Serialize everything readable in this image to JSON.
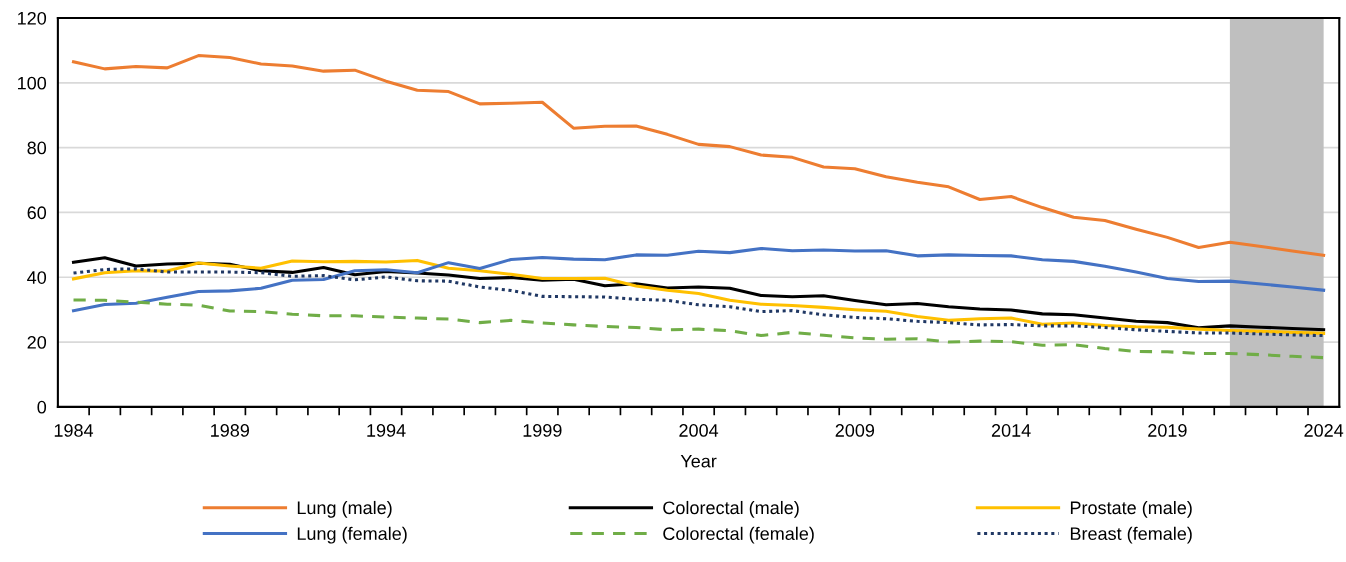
{
  "chart_data": {
    "type": "line",
    "xlabel": "Year",
    "x": [
      1984,
      1985,
      1986,
      1987,
      1988,
      1989,
      1990,
      1991,
      1992,
      1993,
      1994,
      1995,
      1996,
      1997,
      1998,
      1999,
      2000,
      2001,
      2002,
      2003,
      2004,
      2005,
      2006,
      2007,
      2008,
      2009,
      2010,
      2011,
      2012,
      2013,
      2014,
      2015,
      2016,
      2017,
      2018,
      2019,
      2020,
      2021,
      2022,
      2023,
      2024
    ],
    "series": [
      {
        "name": "Lung (male)",
        "color": "#ed7d31",
        "line_style": "solid",
        "values": [
          106.5,
          104.3,
          105,
          104.6,
          108.4,
          107.8,
          105.8,
          105.2,
          103.6,
          103.9,
          100.5,
          97.7,
          97.3,
          93.5,
          93.7,
          94,
          86,
          86.6,
          86.7,
          84.1,
          81,
          80.3,
          77.7,
          77,
          74,
          73.5,
          71,
          69.3,
          67.9,
          64,
          64.9,
          61.5,
          58.5,
          57.5,
          54.8,
          52.3,
          49.2,
          50.8,
          49.5,
          48.1,
          46.8
        ]
      },
      {
        "name": "Colorectal (male)",
        "color": "#000000",
        "line_style": "solid",
        "values": [
          44.6,
          46,
          43.5,
          44.1,
          44.3,
          44,
          42,
          41.5,
          43,
          40.8,
          41.8,
          41.3,
          40.7,
          39.6,
          39.9,
          39.1,
          39.4,
          37.4,
          38,
          36.7,
          37,
          36.6,
          34.4,
          34,
          34.3,
          32.8,
          31.5,
          31.9,
          30.9,
          30.2,
          29.9,
          28.7,
          28.4,
          27.4,
          26.4,
          26,
          24.4,
          25,
          24.6,
          24.2,
          23.8
        ]
      },
      {
        "name": "Prostate (male)",
        "color": "#ffc000",
        "line_style": "solid",
        "values": [
          39.5,
          41.4,
          42,
          41.9,
          44.4,
          43.5,
          42.8,
          45,
          44.8,
          44.9,
          44.7,
          45.2,
          42.8,
          42,
          40.9,
          39.6,
          39.6,
          39.7,
          37.3,
          36,
          35,
          32.9,
          31.7,
          31.3,
          30.7,
          30,
          29.5,
          27.9,
          26.7,
          27.2,
          27.4,
          25.5,
          25.9,
          25.1,
          24.7,
          24.6,
          24,
          23.6,
          23.3,
          23,
          22.7
        ]
      },
      {
        "name": "Lung (female)",
        "color": "#4472c4",
        "line_style": "solid",
        "values": [
          29.7,
          31.6,
          32,
          33.8,
          35.6,
          35.8,
          36.6,
          39.1,
          39.3,
          42,
          42.3,
          41.4,
          44.5,
          42.7,
          45.5,
          46.1,
          45.6,
          45.4,
          46.9,
          46.8,
          48,
          47.6,
          48.9,
          48.2,
          48.4,
          48.1,
          48.2,
          46.6,
          46.9,
          46.7,
          46.6,
          45.4,
          44.9,
          43.4,
          41.6,
          39.6,
          38.7,
          38.8,
          37.9,
          37,
          36
        ]
      },
      {
        "name": "Colorectal (female)",
        "color": "#70ad47",
        "line_style": "dashed",
        "values": [
          33,
          32.9,
          32.3,
          31.7,
          31.4,
          29.6,
          29.4,
          28.6,
          28.1,
          28.1,
          27.7,
          27.4,
          27.1,
          26,
          26.7,
          25.9,
          25.3,
          24.8,
          24.5,
          23.8,
          24,
          23.5,
          22,
          23,
          22.1,
          21.3,
          20.9,
          21,
          20,
          20.3,
          20.1,
          19,
          19.2,
          18,
          17.1,
          17,
          16.5,
          16.5,
          16.1,
          15.6,
          15.2
        ]
      },
      {
        "name": "Breast (female)",
        "color": "#203864",
        "line_style": "dotted",
        "values": [
          41.3,
          42.4,
          42.6,
          41.6,
          41.6,
          41.6,
          41.4,
          40.3,
          40.5,
          39.2,
          40.1,
          38.9,
          38.8,
          37,
          35.9,
          34.1,
          34,
          33.9,
          33.2,
          32.9,
          31.5,
          30.9,
          29.4,
          29.7,
          28.4,
          27.6,
          27.2,
          26.4,
          26,
          25.3,
          25.4,
          25,
          25,
          24.5,
          23.8,
          23.3,
          22.8,
          22.8,
          22.5,
          22.2,
          22
        ]
      }
    ],
    "bands": [
      {
        "axis": "x",
        "from": 2021,
        "to": 2024,
        "color": "#bfbfbf"
      }
    ],
    "xlim": [
      1983.5,
      2024.5
    ],
    "xticks": [
      1984,
      {
        "value": 1984.5,
        "label": null
      },
      {
        "value": 1985.5,
        "label": null
      },
      {
        "value": 1986.5,
        "label": null
      },
      {
        "value": 1987.5,
        "label": null
      },
      {
        "value": 1988.5,
        "label": null
      },
      1989,
      {
        "value": 1989.5,
        "label": null
      },
      {
        "value": 1990.5,
        "label": null
      },
      {
        "value": 1991.5,
        "label": null
      },
      {
        "value": 1992.5,
        "label": null
      },
      {
        "value": 1993.5,
        "label": null
      },
      1994,
      {
        "value": 1994.5,
        "label": null
      },
      {
        "value": 1995.5,
        "label": null
      },
      {
        "value": 1996.5,
        "label": null
      },
      {
        "value": 1997.5,
        "label": null
      },
      {
        "value": 1998.5,
        "label": null
      },
      1999,
      {
        "value": 1999.5,
        "label": null
      },
      {
        "value": 2000.5,
        "label": null
      },
      {
        "value": 2001.5,
        "label": null
      },
      {
        "value": 2002.5,
        "label": null
      },
      {
        "value": 2003.5,
        "label": null
      },
      2004,
      {
        "value": 2004.5,
        "label": null
      },
      {
        "value": 2005.5,
        "label": null
      },
      {
        "value": 2006.5,
        "label": null
      },
      {
        "value": 2007.5,
        "label": null
      },
      {
        "value": 2008.5,
        "label": null
      },
      2009,
      {
        "value": 2009.5,
        "label": null
      },
      {
        "value": 2010.5,
        "label": null
      },
      {
        "value": 2011.5,
        "label": null
      },
      {
        "value": 2012.5,
        "label": null
      },
      {
        "value": 2013.5,
        "label": null
      },
      2014,
      {
        "value": 2014.5,
        "label": null
      },
      {
        "value": 2015.5,
        "label": null
      },
      {
        "value": 2016.5,
        "label": null
      },
      {
        "value": 2017.5,
        "label": null
      },
      {
        "value": 2018.5,
        "label": null
      },
      2019,
      {
        "value": 2019.5,
        "label": null
      },
      {
        "value": 2020.5,
        "label": null
      },
      {
        "value": 2021.5,
        "label": null
      },
      {
        "value": 2022.5,
        "label": null
      },
      {
        "value": 2023.5,
        "label": null
      },
      2024
    ],
    "ylim": [
      0,
      120
    ],
    "yticks": [
      0,
      20,
      40,
      60,
      80,
      100,
      120
    ],
    "grid": "y",
    "legend": "bottom",
    "marker": "none"
  }
}
